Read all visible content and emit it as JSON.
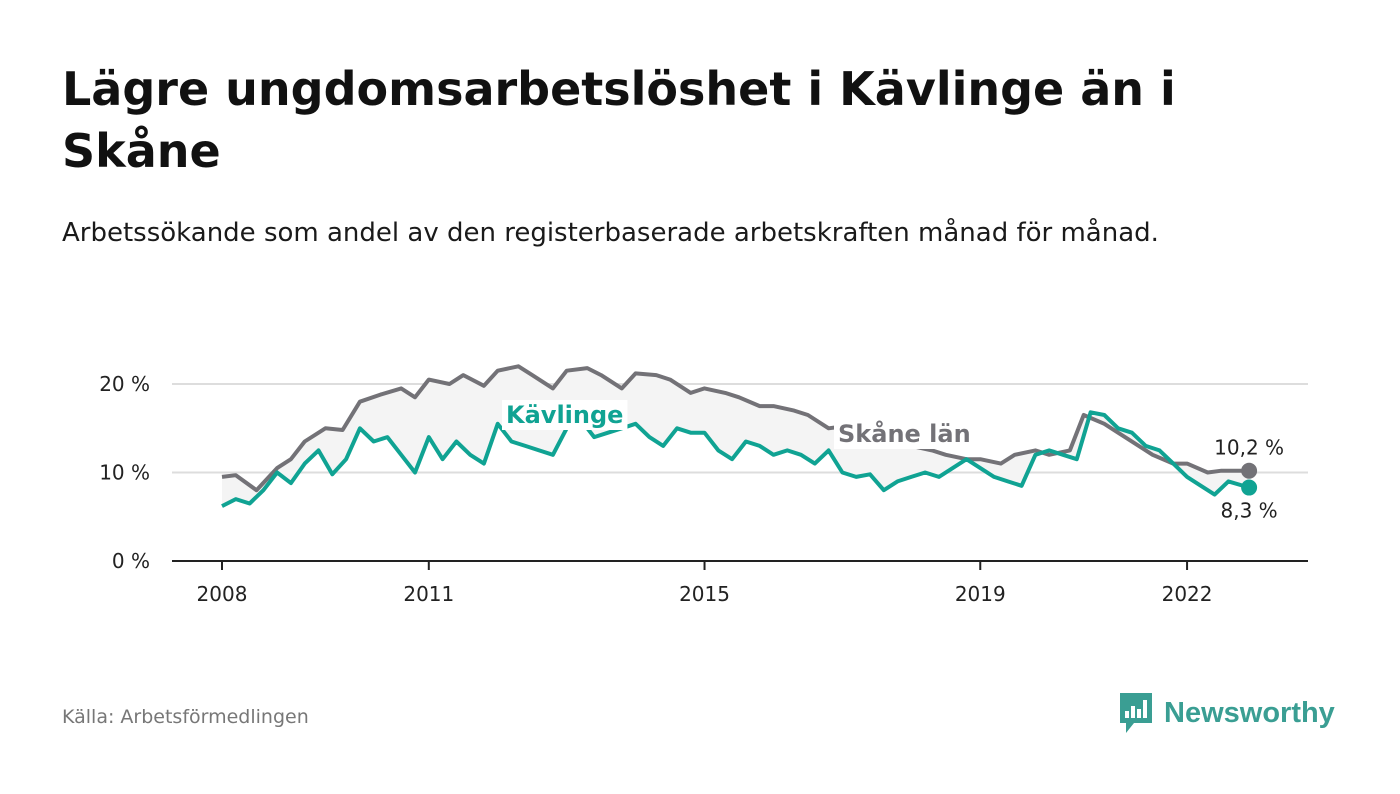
{
  "header": {
    "title": "Lägre ungdomsarbetslöshet i Kävlinge än i Skåne",
    "subtitle": "Arbetssökande som andel av den registerbaserade arbetskraften månad för månad."
  },
  "footer": {
    "source": "Källa: Arbetsförmedlingen",
    "brand": "Newsworthy"
  },
  "colors": {
    "kavlinge": "#10a393",
    "skane": "#737277",
    "fill": "#f4f4f4",
    "grid": "#dddddd",
    "brand": "#3a9e93"
  },
  "chart_data": {
    "type": "line",
    "title": "Lägre ungdomsarbetslöshet i Kävlinge än i Skåne",
    "xlabel": "",
    "ylabel": "",
    "xlim": [
      2008.0,
      2023.0
    ],
    "ylim": [
      0,
      20
    ],
    "y_ticks": [
      0,
      10,
      20
    ],
    "y_tick_labels": [
      "0 %",
      "10 %",
      "20 %"
    ],
    "x_ticks": [
      2008,
      2011,
      2015,
      2019,
      2022
    ],
    "x_tick_labels": [
      "2008",
      "2011",
      "2015",
      "2019",
      "2022"
    ],
    "grid": true,
    "legend": "inline labels",
    "series": [
      {
        "name": "Skåne län",
        "label": "Skåne län",
        "end_label": "10,2 %",
        "points": [
          [
            2008.0,
            9.5
          ],
          [
            2008.2,
            9.7
          ],
          [
            2008.5,
            8.0
          ],
          [
            2008.8,
            10.5
          ],
          [
            2009.0,
            11.5
          ],
          [
            2009.2,
            13.5
          ],
          [
            2009.5,
            15.0
          ],
          [
            2009.75,
            14.8
          ],
          [
            2010.0,
            18.0
          ],
          [
            2010.3,
            18.8
          ],
          [
            2010.6,
            19.5
          ],
          [
            2010.8,
            18.5
          ],
          [
            2011.0,
            20.5
          ],
          [
            2011.3,
            20.0
          ],
          [
            2011.5,
            21.0
          ],
          [
            2011.8,
            19.8
          ],
          [
            2012.0,
            21.5
          ],
          [
            2012.3,
            22.0
          ],
          [
            2012.5,
            21.0
          ],
          [
            2012.8,
            19.5
          ],
          [
            2013.0,
            21.5
          ],
          [
            2013.3,
            21.8
          ],
          [
            2013.5,
            21.0
          ],
          [
            2013.8,
            19.5
          ],
          [
            2014.0,
            21.2
          ],
          [
            2014.3,
            21.0
          ],
          [
            2014.5,
            20.5
          ],
          [
            2014.8,
            19.0
          ],
          [
            2015.0,
            19.5
          ],
          [
            2015.3,
            19.0
          ],
          [
            2015.5,
            18.5
          ],
          [
            2015.8,
            17.5
          ],
          [
            2016.0,
            17.5
          ],
          [
            2016.3,
            17.0
          ],
          [
            2016.5,
            16.5
          ],
          [
            2016.8,
            15.0
          ],
          [
            2017.0,
            15.2
          ],
          [
            2017.3,
            15.0
          ],
          [
            2017.5,
            14.5
          ],
          [
            2017.8,
            13.5
          ],
          [
            2018.0,
            13.0
          ],
          [
            2018.3,
            12.5
          ],
          [
            2018.5,
            12.0
          ],
          [
            2018.8,
            11.5
          ],
          [
            2019.0,
            11.5
          ],
          [
            2019.3,
            11.0
          ],
          [
            2019.5,
            12.0
          ],
          [
            2019.8,
            12.5
          ],
          [
            2020.0,
            12.0
          ],
          [
            2020.3,
            12.5
          ],
          [
            2020.5,
            16.5
          ],
          [
            2020.8,
            15.5
          ],
          [
            2021.0,
            14.5
          ],
          [
            2021.3,
            13.0
          ],
          [
            2021.5,
            12.0
          ],
          [
            2021.8,
            11.0
          ],
          [
            2022.0,
            11.0
          ],
          [
            2022.3,
            10.0
          ],
          [
            2022.5,
            10.2
          ],
          [
            2022.9,
            10.2
          ]
        ]
      },
      {
        "name": "Kävlinge",
        "label": "Kävlinge",
        "end_label": "8,3 %",
        "points": [
          [
            2008.0,
            6.2
          ],
          [
            2008.2,
            7.0
          ],
          [
            2008.4,
            6.5
          ],
          [
            2008.6,
            8.0
          ],
          [
            2008.8,
            10.0
          ],
          [
            2009.0,
            8.8
          ],
          [
            2009.2,
            11.0
          ],
          [
            2009.4,
            12.5
          ],
          [
            2009.6,
            9.8
          ],
          [
            2009.8,
            11.5
          ],
          [
            2010.0,
            15.0
          ],
          [
            2010.2,
            13.5
          ],
          [
            2010.4,
            14.0
          ],
          [
            2010.6,
            12.0
          ],
          [
            2010.8,
            10.0
          ],
          [
            2011.0,
            14.0
          ],
          [
            2011.2,
            11.5
          ],
          [
            2011.4,
            13.5
          ],
          [
            2011.6,
            12.0
          ],
          [
            2011.8,
            11.0
          ],
          [
            2012.0,
            15.5
          ],
          [
            2012.2,
            13.5
          ],
          [
            2012.4,
            13.0
          ],
          [
            2012.6,
            12.5
          ],
          [
            2012.8,
            12.0
          ],
          [
            2013.0,
            15.0
          ],
          [
            2013.2,
            16.0
          ],
          [
            2013.4,
            14.0
          ],
          [
            2013.6,
            14.5
          ],
          [
            2013.8,
            15.0
          ],
          [
            2014.0,
            15.5
          ],
          [
            2014.2,
            14.0
          ],
          [
            2014.4,
            13.0
          ],
          [
            2014.6,
            15.0
          ],
          [
            2014.8,
            14.5
          ],
          [
            2015.0,
            14.5
          ],
          [
            2015.2,
            12.5
          ],
          [
            2015.4,
            11.5
          ],
          [
            2015.6,
            13.5
          ],
          [
            2015.8,
            13.0
          ],
          [
            2016.0,
            12.0
          ],
          [
            2016.2,
            12.5
          ],
          [
            2016.4,
            12.0
          ],
          [
            2016.6,
            11.0
          ],
          [
            2016.8,
            12.5
          ],
          [
            2017.0,
            10.0
          ],
          [
            2017.2,
            9.5
          ],
          [
            2017.4,
            9.8
          ],
          [
            2017.6,
            8.0
          ],
          [
            2017.8,
            9.0
          ],
          [
            2018.0,
            9.5
          ],
          [
            2018.2,
            10.0
          ],
          [
            2018.4,
            9.5
          ],
          [
            2018.6,
            10.5
          ],
          [
            2018.8,
            11.5
          ],
          [
            2019.0,
            10.5
          ],
          [
            2019.2,
            9.5
          ],
          [
            2019.4,
            9.0
          ],
          [
            2019.6,
            8.5
          ],
          [
            2019.8,
            12.0
          ],
          [
            2020.0,
            12.5
          ],
          [
            2020.2,
            12.0
          ],
          [
            2020.4,
            11.5
          ],
          [
            2020.6,
            16.8
          ],
          [
            2020.8,
            16.5
          ],
          [
            2021.0,
            15.0
          ],
          [
            2021.2,
            14.5
          ],
          [
            2021.4,
            13.0
          ],
          [
            2021.6,
            12.5
          ],
          [
            2021.8,
            11.0
          ],
          [
            2022.0,
            9.5
          ],
          [
            2022.2,
            8.5
          ],
          [
            2022.4,
            7.5
          ],
          [
            2022.6,
            9.0
          ],
          [
            2022.9,
            8.3
          ]
        ]
      }
    ]
  }
}
